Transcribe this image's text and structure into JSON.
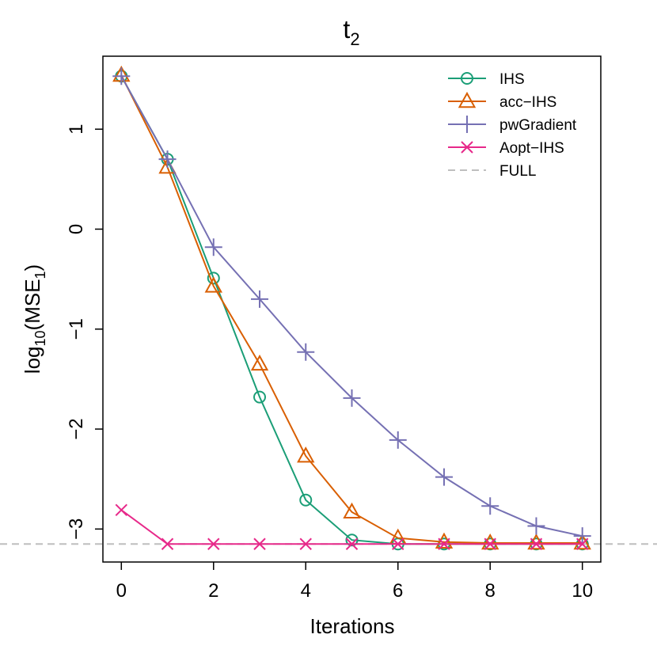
{
  "chart_data": {
    "type": "line",
    "title": "t",
    "title_subscript": "2",
    "xlabel": "Iterations",
    "ylabel": {
      "prefix": "log",
      "prefix_sub": "10",
      "middle": "(MSE",
      "middle_sub": "1",
      "suffix": ")"
    },
    "x": [
      0,
      1,
      2,
      3,
      4,
      5,
      6,
      7,
      8,
      9,
      10
    ],
    "xlim": [
      -0.4,
      10.4
    ],
    "ylim": [
      -3.33,
      1.73
    ],
    "xticks": [
      0,
      2,
      4,
      6,
      8,
      10
    ],
    "xtick_labels": [
      "0",
      "2",
      "4",
      "6",
      "8",
      "10"
    ],
    "yticks": [
      -3,
      -2,
      -1,
      0,
      1
    ],
    "ytick_labels": [
      "−3",
      "−2",
      "−1",
      "0",
      "1"
    ],
    "grid": false,
    "legend_position": "top-right",
    "series": [
      {
        "name": "IHS",
        "color": "#1b9e77",
        "marker": "circle",
        "values": [
          1.53,
          0.7,
          -0.49,
          -1.68,
          -2.71,
          -3.11,
          -3.15,
          -3.15,
          -3.15,
          -3.15,
          -3.15
        ]
      },
      {
        "name": "acc−IHS",
        "color": "#d95f02",
        "marker": "triangle",
        "values": [
          1.54,
          0.62,
          -0.57,
          -1.35,
          -2.27,
          -2.83,
          -3.09,
          -3.13,
          -3.14,
          -3.14,
          -3.14
        ]
      },
      {
        "name": "pwGradient",
        "color": "#7570b3",
        "marker": "plus",
        "values": [
          1.53,
          0.7,
          -0.18,
          -0.7,
          -1.23,
          -1.69,
          -2.11,
          -2.48,
          -2.77,
          -2.97,
          -3.07
        ]
      },
      {
        "name": "Aopt−IHS",
        "color": "#e7298a",
        "marker": "cross",
        "values": [
          -2.81,
          -3.15,
          -3.15,
          -3.15,
          -3.15,
          -3.15,
          -3.15,
          -3.15,
          -3.15,
          -3.15,
          -3.15
        ]
      }
    ],
    "reference_line": {
      "name": "FULL",
      "value": -3.15,
      "color": "#bebebe",
      "style": "dashed"
    }
  }
}
